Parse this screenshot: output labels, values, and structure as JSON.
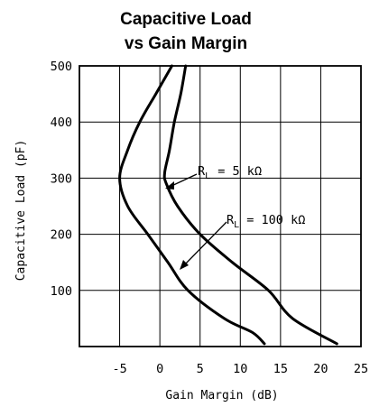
{
  "chart_data": {
    "type": "line",
    "title_line1": "Capacitive Load",
    "title_line2": "vs Gain Margin",
    "xlabel": "Gain Margin (dB)",
    "ylabel": "Capacitive Load (pF)",
    "xlim": [
      -10,
      25
    ],
    "ylim": [
      0,
      500
    ],
    "x_ticks": [
      -5,
      0,
      5,
      10,
      15,
      20,
      25
    ],
    "y_ticks": [
      100,
      200,
      300,
      400,
      500
    ],
    "grid": true,
    "line_color": "#000000",
    "series": [
      {
        "label_main": "R",
        "label_sub": "L",
        "label_rest": " = 5 kΩ",
        "points": [
          [
            3.2,
            500
          ],
          [
            2.6,
            450
          ],
          [
            1.8,
            400
          ],
          [
            1.2,
            350
          ],
          [
            0.6,
            310
          ],
          [
            0.8,
            290
          ],
          [
            2.2,
            250
          ],
          [
            5.0,
            200
          ],
          [
            9.0,
            150
          ],
          [
            13.5,
            100
          ],
          [
            16.5,
            50
          ],
          [
            22.0,
            5
          ]
        ]
      },
      {
        "label_main": "R",
        "label_sub": "L",
        "label_rest": " = 100 kΩ",
        "points": [
          [
            1.5,
            500
          ],
          [
            -0.5,
            450
          ],
          [
            -2.5,
            400
          ],
          [
            -4.0,
            350
          ],
          [
            -5.0,
            300
          ],
          [
            -4.0,
            250
          ],
          [
            -1.5,
            200
          ],
          [
            1.0,
            150
          ],
          [
            3.5,
            100
          ],
          [
            8.0,
            50
          ],
          [
            11.5,
            25
          ],
          [
            13.0,
            5
          ]
        ]
      }
    ]
  }
}
